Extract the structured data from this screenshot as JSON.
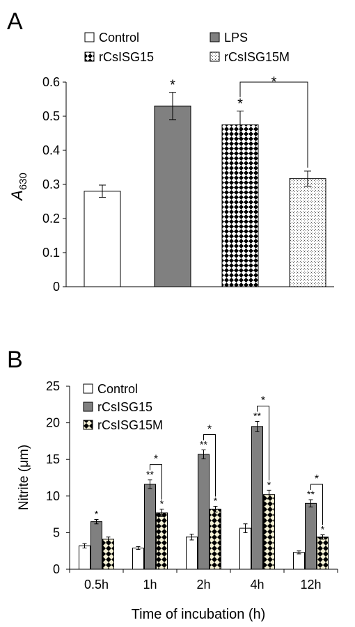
{
  "chart_data": [
    {
      "panel_label": "A",
      "type": "bar",
      "categories": [
        "Control",
        "LPS",
        "rCsISG15",
        "rCsISG15M"
      ],
      "values": [
        0.28,
        0.53,
        0.475,
        0.317
      ],
      "errors": [
        0.018,
        0.04,
        0.04,
        0.022
      ],
      "ylabel_base": "A",
      "ylabel_sub": "630",
      "ylim": [
        0,
        0.6
      ],
      "yticks": [
        "0",
        "0.1",
        "0.2",
        "0.3",
        "0.4",
        "0.5",
        "0.6"
      ],
      "legend": [
        "Control",
        "LPS",
        "rCsISG15",
        "rCsISG15M"
      ],
      "legend_position": "top",
      "annotations": [
        "",
        "*",
        "*",
        ""
      ],
      "bracket": {
        "from": "rCsISG15",
        "to": "rCsISG15M",
        "label": "*"
      },
      "grid": false
    },
    {
      "panel_label": "B",
      "type": "bar",
      "categories": [
        "0.5h",
        "1h",
        "2h",
        "4h",
        "12h"
      ],
      "series": [
        {
          "name": "Control",
          "values": [
            3.2,
            2.9,
            4.4,
            5.6,
            2.3
          ],
          "errors": [
            0.3,
            0.2,
            0.4,
            0.6,
            0.2
          ],
          "annotations": [
            "",
            "",
            "",
            "",
            ""
          ]
        },
        {
          "name": "rCsISG15",
          "values": [
            6.5,
            11.6,
            15.7,
            19.5,
            9.0
          ],
          "errors": [
            0.3,
            0.6,
            0.6,
            0.7,
            0.5
          ],
          "annotations": [
            "*",
            "**",
            "**",
            "**",
            "**"
          ]
        },
        {
          "name": "rCsISG15M",
          "values": [
            4.1,
            7.7,
            8.2,
            10.2,
            4.4
          ],
          "errors": [
            0.3,
            0.5,
            0.4,
            0.6,
            0.3
          ],
          "annotations": [
            "",
            "*",
            "*",
            "*",
            "*"
          ]
        }
      ],
      "brackets": [
        {
          "category": "1h",
          "label": "*"
        },
        {
          "category": "2h",
          "label": "*"
        },
        {
          "category": "4h",
          "label": "*"
        },
        {
          "category": "12h",
          "label": "*"
        }
      ],
      "xlabel": "Time of incubation (h)",
      "ylabel": "Nitrite (μm)",
      "ylim": [
        0,
        25
      ],
      "yticks": [
        "0",
        "5",
        "10",
        "15",
        "20",
        "25"
      ],
      "legend_position": "top-left",
      "grid": false
    }
  ]
}
